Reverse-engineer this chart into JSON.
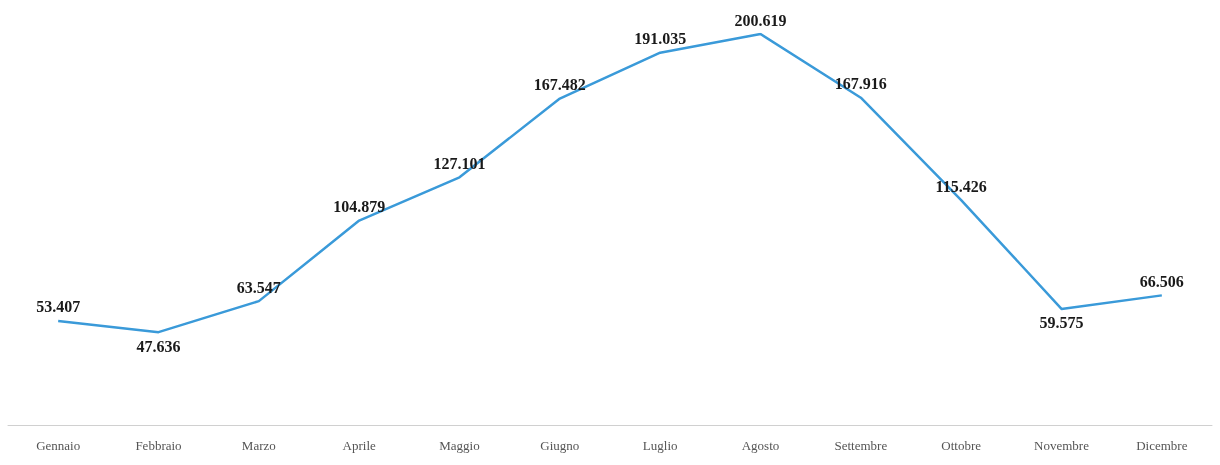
{
  "chart_data": {
    "type": "line",
    "categories": [
      "Gennaio",
      "Febbraio",
      "Marzo",
      "Aprile",
      "Maggio",
      "Giugno",
      "Luglio",
      "Agosto",
      "Settembre",
      "Ottobre",
      "Novembre",
      "Dicembre"
    ],
    "series": [
      {
        "color": "#3a9ad9",
        "values": [
          53407,
          47636,
          63547,
          104879,
          127101,
          167482,
          191035,
          200619,
          167916,
          115426,
          59575,
          66506
        ],
        "value_labels": [
          "53.407",
          "47.636",
          "63.547",
          "104.879",
          "127.101",
          "167.482",
          "191.035",
          "200.619",
          "167.916",
          "115.426",
          "59.575",
          "66.506"
        ]
      }
    ],
    "line_style": "solid"
  }
}
